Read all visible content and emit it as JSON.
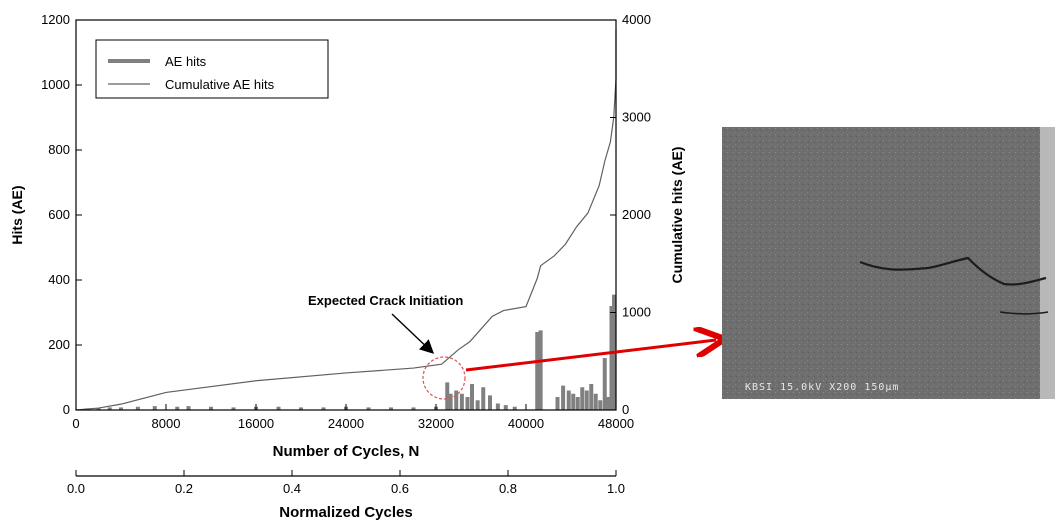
{
  "chart_data": [
    {
      "type": "bar+line",
      "x_label": "Number of Cycles, N",
      "y_left_label": "Hits (AE)",
      "y_right_label": "Cumulative hits (AE)",
      "xlim": [
        0,
        48000
      ],
      "ylim_left": [
        0,
        1200
      ],
      "ylim_right": [
        0,
        4000
      ],
      "x_ticks": [
        "0",
        "8000",
        "16000",
        "24000",
        "32000",
        "40000",
        "48000"
      ],
      "y_left_ticks": [
        "0",
        "200",
        "400",
        "600",
        "800",
        "1000",
        "1200"
      ],
      "y_right_ticks": [
        "0",
        "1000",
        "2000",
        "3000",
        "4000"
      ],
      "legend": {
        "position": "top-left",
        "entries": [
          "AE hits",
          "Cumulative AE hits"
        ]
      },
      "series": [
        {
          "name": "AE hits",
          "kind": "bar",
          "axis": "left",
          "color": "#808080",
          "x": [
            1000,
            2000,
            3000,
            4000,
            5500,
            7000,
            9000,
            10000,
            12000,
            14000,
            16000,
            18000,
            20000,
            22000,
            24000,
            26000,
            28000,
            30000,
            32000,
            33000,
            33300,
            33800,
            34300,
            34800,
            35200,
            35700,
            36200,
            36800,
            37500,
            38200,
            39000,
            41000,
            41300,
            42800,
            43300,
            43800,
            44200,
            44600,
            45000,
            45400,
            45800,
            46200,
            46600,
            47000,
            47300,
            47600,
            47900,
            48200
          ],
          "values": [
            5,
            6,
            8,
            8,
            10,
            12,
            10,
            12,
            10,
            8,
            10,
            10,
            8,
            8,
            10,
            8,
            8,
            8,
            10,
            85,
            50,
            60,
            50,
            40,
            80,
            30,
            70,
            45,
            20,
            15,
            10,
            240,
            245,
            40,
            75,
            60,
            50,
            40,
            70,
            60,
            80,
            50,
            30,
            160,
            40,
            320,
            355,
            350
          ]
        },
        {
          "name": "Cumulative AE hits",
          "kind": "line",
          "axis": "right",
          "color": "#606060",
          "x": [
            0,
            2000,
            4000,
            8000,
            16000,
            24000,
            30000,
            32500,
            33000,
            34000,
            35000,
            36000,
            37000,
            38000,
            40000,
            41000,
            41300,
            42500,
            43500,
            44500,
            45500,
            46500,
            47000,
            47500,
            47800,
            48000,
            48200
          ],
          "y": [
            0,
            20,
            60,
            180,
            300,
            380,
            430,
            470,
            520,
            620,
            700,
            830,
            960,
            1020,
            1060,
            1350,
            1480,
            1580,
            1700,
            1880,
            2020,
            2300,
            2550,
            2750,
            3000,
            3400,
            3900
          ]
        }
      ],
      "annotations": [
        {
          "text": "Expected Crack Initiation",
          "x": 33000,
          "y_left": 90
        }
      ]
    },
    {
      "type": "axis",
      "x_label": "Normalized Cycles",
      "xlim": [
        0.0,
        1.0
      ],
      "x_ticks": [
        "0.0",
        "0.2",
        "0.4",
        "0.6",
        "0.8",
        "1.0"
      ]
    }
  ],
  "inset": {
    "caption": "KBSI    15.0kV  X200   150μm"
  }
}
